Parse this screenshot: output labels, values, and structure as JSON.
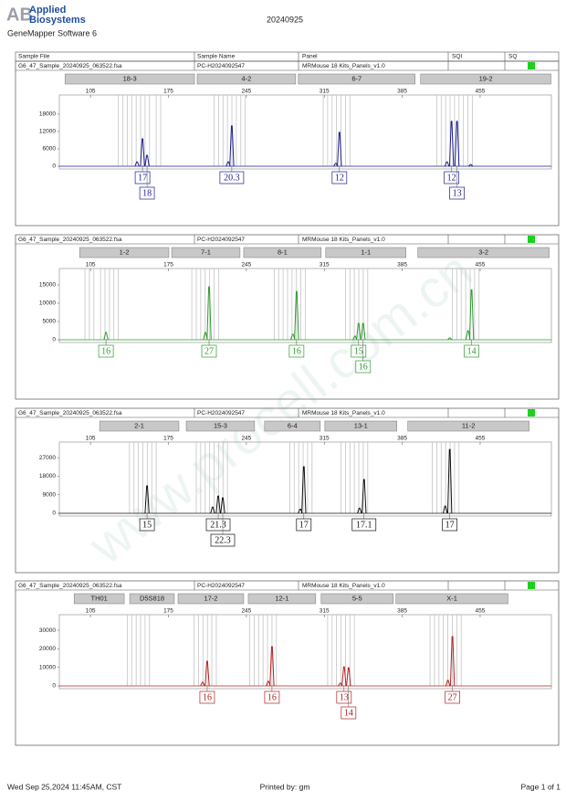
{
  "header": {
    "logo": "AB",
    "brand_line1": "Applied",
    "brand_line2": "Biosystems",
    "software": "GeneMapper Software 6",
    "date": "20240925",
    "watermark": "www.procell.com.cn"
  },
  "columns": [
    "Sample File",
    "Sample Name",
    "Panel",
    "SQI",
    "SQ"
  ],
  "footer": {
    "printed_on": "Wed Sep 25,2024 11:45AM, CST",
    "printed_by": "Printed by: gm",
    "page": "Page 1 of 1"
  },
  "chart_data": [
    {
      "type": "electropherogram",
      "sample_file": "G6_47_Sample_20240925_063522.fsa",
      "sample_name": "PC-H2024092547",
      "panel": "MRMouse 18 Kits_Panels_v1.0",
      "color": "#1c1c8f",
      "xlim": [
        77,
        519
      ],
      "xticks": [
        105,
        175,
        245,
        315,
        385,
        455
      ],
      "ylim": [
        0,
        24600
      ],
      "yticks": [
        0,
        6000,
        12000,
        18000
      ],
      "markers": [
        {
          "label": "18-3",
          "range": [
            82.1,
            198.4
          ]
        },
        {
          "label": "4-2",
          "range": [
            200.8,
            289.3
          ]
        },
        {
          "label": "6-7",
          "range": [
            291.7,
            396.6
          ]
        },
        {
          "label": "19-2",
          "range": [
            401.5,
            518.6
          ]
        }
      ],
      "bins": [
        130,
        134,
        138,
        142,
        146,
        150,
        154,
        158,
        164,
        168,
        216,
        220,
        224,
        228,
        232,
        236,
        240,
        244,
        314,
        318,
        322,
        326,
        330,
        334,
        338,
        416,
        420,
        424,
        428,
        432,
        436,
        440,
        444,
        448
      ],
      "peaks": [
        {
          "x": 146.8,
          "height": 1500
        },
        {
          "x": 151.7,
          "height": 9460,
          "allele": "17"
        },
        {
          "x": 155.8,
          "height": 3800,
          "allele": "18"
        },
        {
          "x": 228.7,
          "height": 1500
        },
        {
          "x": 231.9,
          "height": 13900,
          "allele": "20.3"
        },
        {
          "x": 325.3,
          "height": 1000
        },
        {
          "x": 328.6,
          "height": 11700,
          "allele": "12"
        },
        {
          "x": 425.2,
          "height": 1500
        },
        {
          "x": 429.3,
          "height": 15500,
          "allele": "12"
        },
        {
          "x": 434.2,
          "height": 15500,
          "allele": "13"
        },
        {
          "x": 446.5,
          "height": 600
        }
      ]
    },
    {
      "type": "electropherogram",
      "sample_file": "G6_47_Sample_20240925_063522.fsa",
      "sample_name": "PC-H2024092547",
      "panel": "MRMouse 18 Kits_Panels_v1.0",
      "color": "#2f9a2f",
      "xlim": [
        77,
        519
      ],
      "xticks": [
        105,
        175,
        245,
        315,
        385,
        455
      ],
      "ylim": [
        0,
        19500
      ],
      "yticks": [
        0,
        5000,
        10000,
        15000
      ],
      "markers": [
        {
          "label": "1-2",
          "range": [
            95.2,
            175.4
          ]
        },
        {
          "label": "7-1",
          "range": [
            177.9,
            239.3
          ]
        },
        {
          "label": "8-1",
          "range": [
            242.6,
            312.2
          ]
        },
        {
          "label": "1-1",
          "range": [
            316.3,
            388.4
          ]
        },
        {
          "label": "3-2",
          "range": [
            399,
            517
          ]
        }
      ],
      "bins": [
        100,
        104,
        108,
        114,
        118,
        122,
        126,
        130,
        196,
        200,
        204,
        208,
        212,
        216,
        220,
        270,
        274,
        278,
        282,
        286,
        290,
        294,
        298,
        334,
        338,
        342,
        346,
        350,
        354,
        430,
        434,
        438,
        442,
        446,
        450,
        454
      ],
      "peaks": [
        {
          "x": 118.9,
          "height": 2000,
          "allele": "16"
        },
        {
          "x": 208.2,
          "height": 2000
        },
        {
          "x": 211.5,
          "height": 14500,
          "allele": "27"
        },
        {
          "x": 286.8,
          "height": 1500
        },
        {
          "x": 290.1,
          "height": 13200,
          "allele": "16"
        },
        {
          "x": 342.5,
          "height": 1000
        },
        {
          "x": 345.8,
          "height": 4500,
          "allele": "15"
        },
        {
          "x": 349.9,
          "height": 4500,
          "allele": "16"
        },
        {
          "x": 427.7,
          "height": 500
        },
        {
          "x": 444.1,
          "height": 2500
        },
        {
          "x": 447.3,
          "height": 13700,
          "allele": "14"
        }
      ]
    },
    {
      "type": "electropherogram",
      "sample_file": "G6_47_Sample_20240925_063522.fsa",
      "sample_name": "PC-H2024092547",
      "panel": "MRMouse 18 Kits_Panels_v1.0",
      "color": "#111111",
      "xlim": [
        77,
        519
      ],
      "xticks": [
        105,
        175,
        245,
        315,
        385,
        455
      ],
      "ylim": [
        0,
        34600
      ],
      "yticks": [
        0,
        9000,
        18000,
        27000
      ],
      "markers": [
        {
          "label": "2-1",
          "range": [
            113.2,
            184.4
          ]
        },
        {
          "label": "15-3",
          "range": [
            191,
            252.4
          ]
        },
        {
          "label": "6-4",
          "range": [
            261.4,
            311.4
          ]
        },
        {
          "label": "13-1",
          "range": [
            315.5,
            380.2
          ]
        },
        {
          "label": "11-2",
          "range": [
            390,
            499
          ]
        }
      ],
      "bins": [
        140,
        144,
        148,
        152,
        156,
        160,
        164,
        200,
        204,
        208,
        212,
        216,
        220,
        224,
        228,
        284,
        288,
        292,
        296,
        300,
        304,
        330,
        334,
        338,
        342,
        346,
        350,
        354,
        412,
        416,
        420,
        424,
        428,
        432,
        436
      ],
      "peaks": [
        {
          "x": 155.8,
          "height": 13300,
          "allele": "15"
        },
        {
          "x": 214.7,
          "height": 3000
        },
        {
          "x": 219.7,
          "height": 8400,
          "allele": "21.3"
        },
        {
          "x": 223.8,
          "height": 7500,
          "allele": "22.3"
        },
        {
          "x": 293.4,
          "height": 2000
        },
        {
          "x": 296.6,
          "height": 22600,
          "allele": "17"
        },
        {
          "x": 346.6,
          "height": 2500
        },
        {
          "x": 350.7,
          "height": 16400,
          "allele": "17.1"
        },
        {
          "x": 423.6,
          "height": 3500
        },
        {
          "x": 427.7,
          "height": 31000,
          "allele": "17"
        }
      ]
    },
    {
      "type": "electropherogram",
      "sample_file": "G6_47_Sample_20240925_063522.fsa",
      "sample_name": "PC-H2024092547",
      "panel": "MRMouse 18 Kits_Panels_v1.0",
      "color": "#b22222",
      "xlim": [
        77,
        519
      ],
      "xticks": [
        105,
        175,
        245,
        315,
        385,
        455
      ],
      "ylim": [
        0,
        38400
      ],
      "yticks": [
        0,
        10000,
        20000,
        30000
      ],
      "markers": [
        {
          "label": "TH01",
          "range": [
            90.3,
            135.3
          ]
        },
        {
          "label": "D5S818",
          "range": [
            140.2,
            180.3
          ]
        },
        {
          "label": "17-2",
          "range": [
            183.6,
            242.6
          ]
        },
        {
          "label": "12-1",
          "range": [
            246.7,
            307.3
          ]
        },
        {
          "label": "5-5",
          "range": [
            312.2,
            377
          ]
        },
        {
          "label": "X-1",
          "range": [
            379.4,
            480
          ]
        }
      ],
      "bins": [
        138,
        142,
        146,
        150,
        154,
        158,
        198,
        202,
        206,
        210,
        214,
        218,
        248,
        252,
        256,
        260,
        264,
        268,
        272,
        318,
        322,
        326,
        330,
        334,
        338,
        342,
        410,
        414,
        418,
        422,
        426,
        430,
        434,
        438
      ],
      "peaks": [
        {
          "x": 205.7,
          "height": 2000
        },
        {
          "x": 209.8,
          "height": 13300,
          "allele": "16"
        },
        {
          "x": 264.7,
          "height": 2500
        },
        {
          "x": 268,
          "height": 21200,
          "allele": "16"
        },
        {
          "x": 329.4,
          "height": 1500
        },
        {
          "x": 332.7,
          "height": 10300,
          "allele": "13"
        },
        {
          "x": 336.8,
          "height": 9800,
          "allele": "14"
        },
        {
          "x": 426,
          "height": 3000
        },
        {
          "x": 430.1,
          "height": 26600,
          "allele": "27"
        }
      ]
    }
  ]
}
